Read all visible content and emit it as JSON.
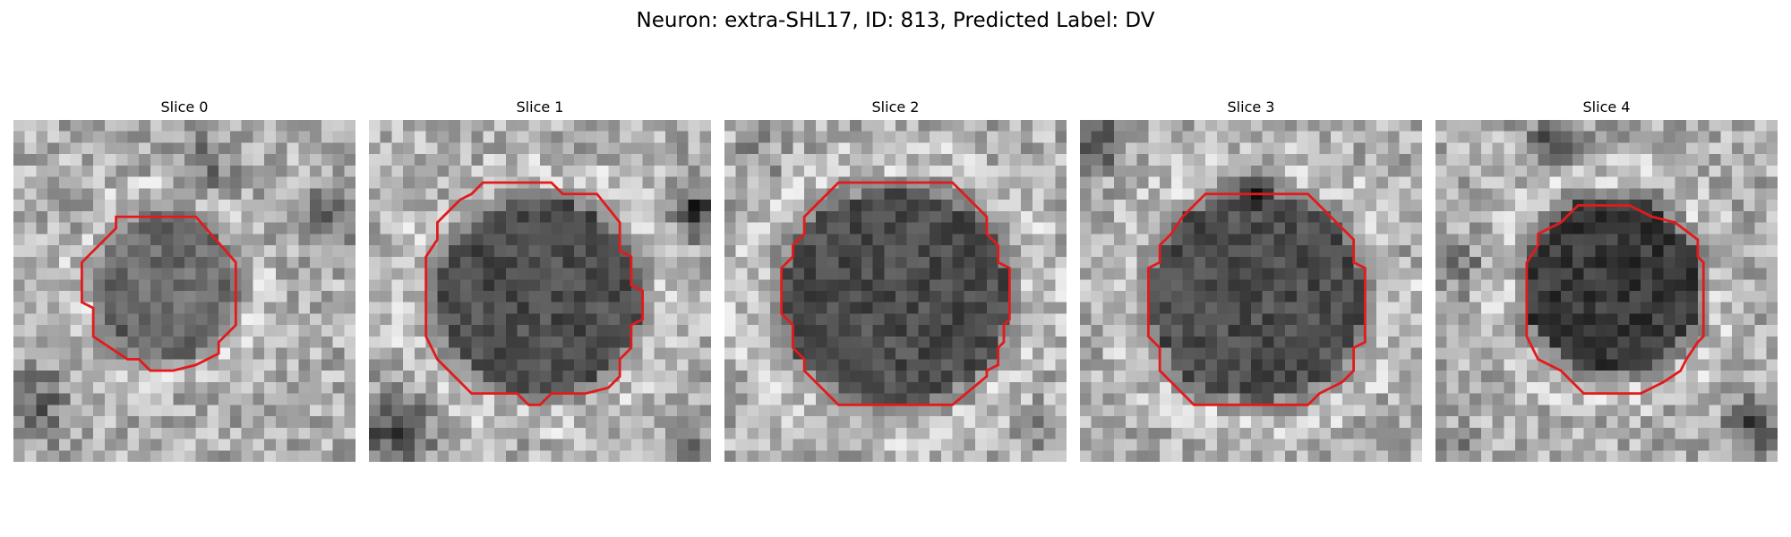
{
  "figure": {
    "title": "Neuron: extra-SHL17, ID: 813, Predicted Label: DV"
  },
  "slices": [
    {
      "title": "Slice 0",
      "soma_tone": "mid-dark",
      "neighbors": [
        "lower-left-dark",
        "right-dark",
        "upper-mid-dark"
      ]
    },
    {
      "title": "Slice 1",
      "soma_tone": "dark",
      "neighbors": [
        "right-edge-dark",
        "lower-left-dark"
      ]
    },
    {
      "title": "Slice 2",
      "soma_tone": "dark",
      "neighbors": []
    },
    {
      "title": "Slice 3",
      "soma_tone": "dark",
      "neighbors": [
        "top-left-dark",
        "top-mid-dark"
      ]
    },
    {
      "title": "Slice 4",
      "soma_tone": "very-dark",
      "neighbors": [
        "top-dark",
        "lower-right-dark",
        "left-dark"
      ]
    }
  ],
  "colors": {
    "contour": "#e31a1c",
    "background": "#ffffff"
  }
}
